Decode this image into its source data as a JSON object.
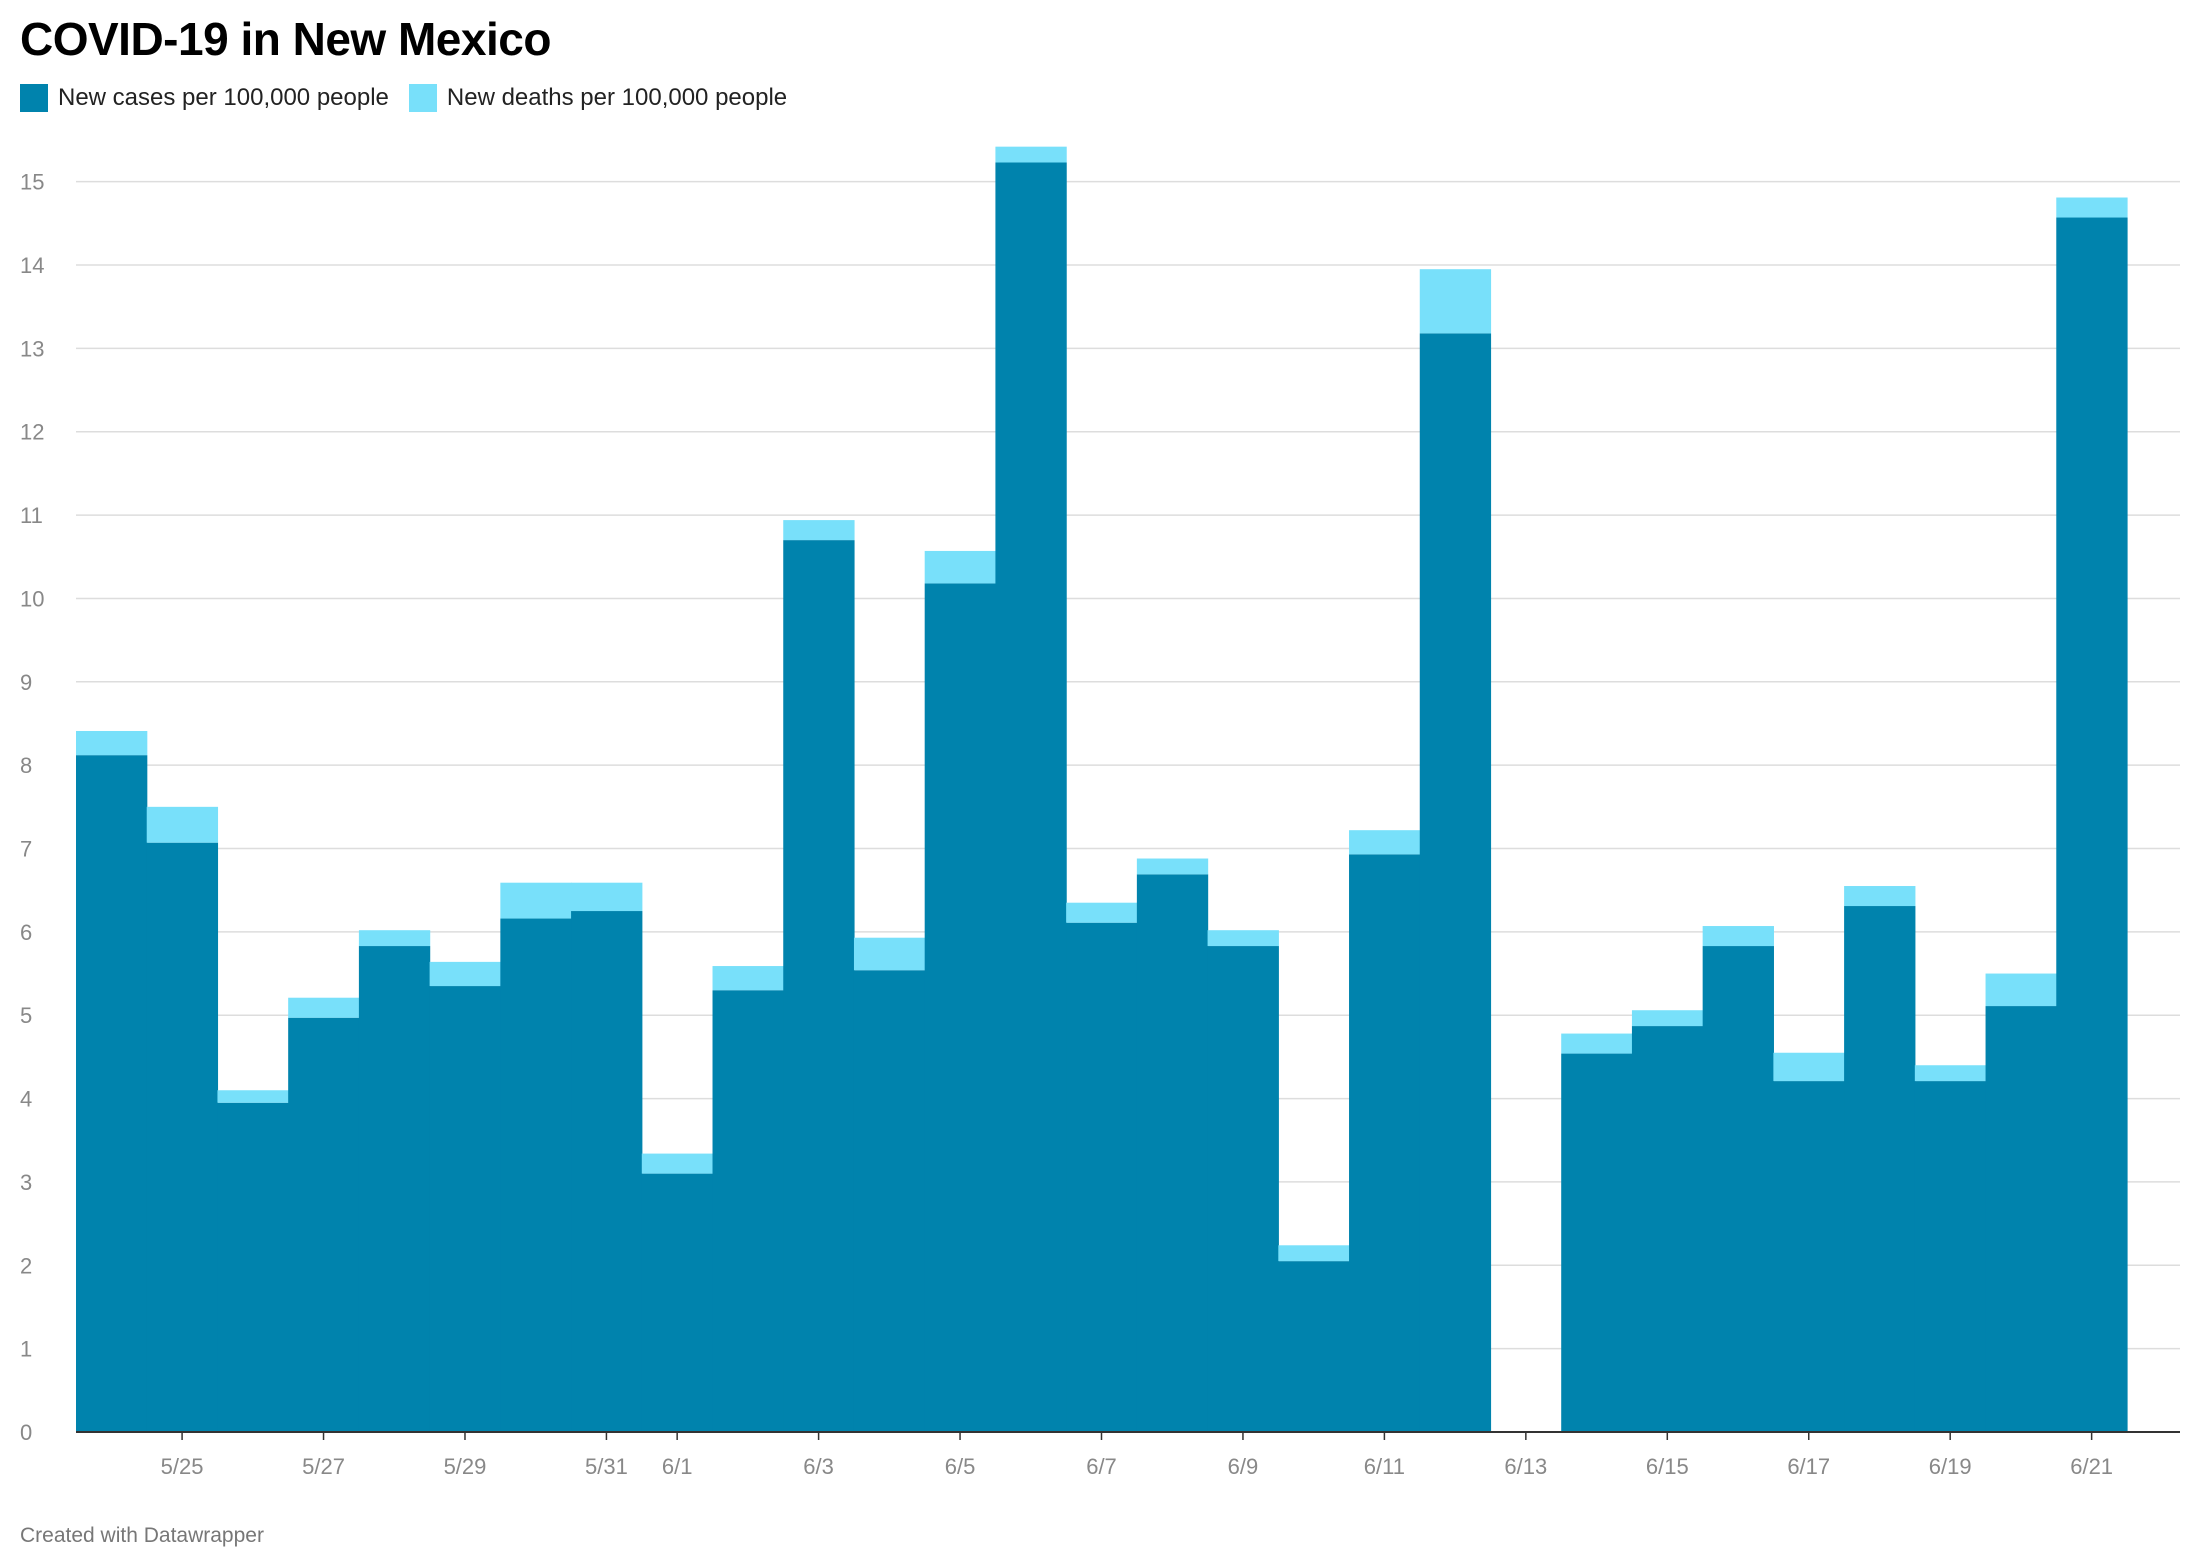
{
  "title": "COVID-19 in New Mexico",
  "footer": "Created with Datawrapper",
  "colors": {
    "cases": "#0083ad",
    "deaths": "#78e0fa",
    "grid": "#dddddd",
    "axis": "#333333"
  },
  "chart_data": {
    "type": "bar",
    "stacked": true,
    "title": "COVID-19 in New Mexico",
    "xlabel": "",
    "ylabel": "",
    "ylim": [
      0,
      15.5
    ],
    "grid": true,
    "legend_position": "top-left",
    "y_ticks": [
      0,
      1,
      2,
      3,
      4,
      5,
      6,
      7,
      8,
      9,
      10,
      11,
      12,
      13,
      14,
      15
    ],
    "categories": [
      "5/24",
      "5/25",
      "5/26",
      "5/27",
      "5/28",
      "5/29",
      "5/30",
      "5/31",
      "6/1",
      "6/2",
      "6/3",
      "6/4",
      "6/5",
      "6/6",
      "6/7",
      "6/8",
      "6/9",
      "6/10",
      "6/11",
      "6/12",
      "6/13",
      "6/14",
      "6/15",
      "6/16",
      "6/17",
      "6/18",
      "6/19",
      "6/20",
      "6/21"
    ],
    "x_tick_labels": [
      "5/25",
      "5/27",
      "5/29",
      "5/31",
      "6/1",
      "6/3",
      "6/5",
      "6/7",
      "6/9",
      "6/11",
      "6/13",
      "6/15",
      "6/17",
      "6/19",
      "6/21"
    ],
    "series": [
      {
        "name": "New cases per 100,000 people",
        "values": [
          8.12,
          7.07,
          3.95,
          4.97,
          5.83,
          5.35,
          6.16,
          6.25,
          3.1,
          5.3,
          10.7,
          5.54,
          10.18,
          15.23,
          6.11,
          6.69,
          5.83,
          2.05,
          6.93,
          13.18,
          0,
          4.54,
          4.87,
          5.83,
          4.21,
          6.31,
          4.21,
          5.11,
          14.57
        ]
      },
      {
        "name": "New deaths per 100,000 people",
        "values": [
          0.29,
          0.43,
          0.15,
          0.24,
          0.19,
          0.29,
          0.43,
          0.34,
          0.24,
          0.29,
          0.24,
          0.39,
          0.39,
          0.19,
          0.24,
          0.19,
          0.19,
          0.19,
          0.29,
          0.77,
          0,
          0.24,
          0.19,
          0.24,
          0.34,
          0.24,
          0.19,
          0.39,
          0.24
        ]
      }
    ]
  }
}
